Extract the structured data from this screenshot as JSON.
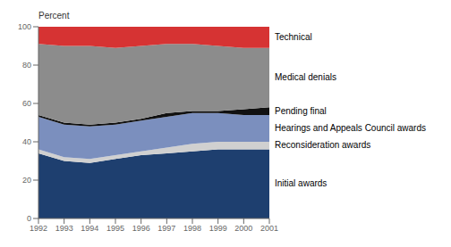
{
  "chart_data": {
    "type": "area",
    "ylabel": "Percent",
    "x": [
      1992,
      1993,
      1994,
      1995,
      1996,
      1997,
      1998,
      1999,
      2000,
      2001
    ],
    "xlim": [
      1992,
      2001
    ],
    "xticks": [
      1992,
      1993,
      1994,
      1995,
      1996,
      1997,
      1998,
      1999,
      2000,
      2001
    ],
    "ylim": [
      0,
      100
    ],
    "yticks": [
      0,
      20,
      40,
      60,
      80,
      100
    ],
    "stacked": true,
    "grid": false,
    "series": [
      {
        "name": "Initial awards",
        "color": "#1e3f6f",
        "values": [
          34,
          30,
          29,
          31,
          33,
          34,
          35,
          36,
          36,
          36
        ]
      },
      {
        "name": "Reconsideration awards",
        "color": "#d0d0d0",
        "values": [
          2,
          2,
          2,
          2,
          2,
          3,
          4,
          4,
          4,
          4
        ]
      },
      {
        "name": "Hearings and Appeals Council awards",
        "color": "#7b8fbe",
        "values": [
          17,
          17,
          17,
          16,
          16,
          16,
          16,
          15,
          14,
          14
        ]
      },
      {
        "name": "Pending final",
        "color": "#111111",
        "values": [
          1,
          1,
          1,
          1,
          1,
          2,
          1,
          1,
          3,
          4
        ]
      },
      {
        "name": "Medical denials",
        "color": "#8c8c8c",
        "values": [
          37,
          40,
          41,
          39,
          38,
          36,
          35,
          34,
          32,
          31
        ]
      },
      {
        "name": "Technical",
        "color": "#d63333",
        "values": [
          9,
          10,
          10,
          11,
          10,
          9,
          9,
          10,
          11,
          11
        ]
      }
    ]
  }
}
